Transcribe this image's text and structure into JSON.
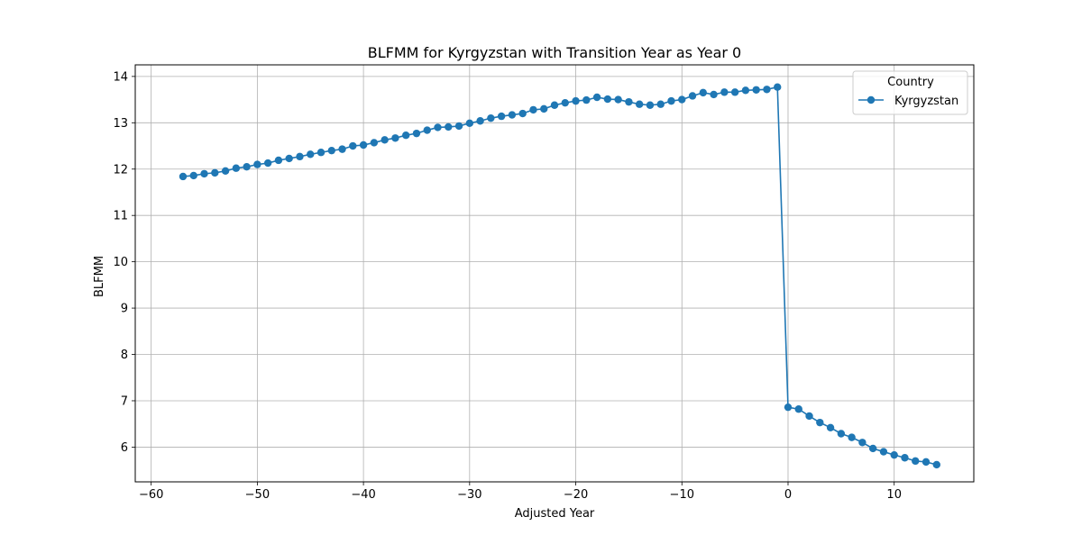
{
  "chart_data": {
    "type": "line",
    "title": "BLFMM for Kyrgyzstan with Transition Year as Year 0",
    "xlabel": "Adjusted Year",
    "ylabel": "BLFMM",
    "xlim": [
      -61.5,
      17.5
    ],
    "ylim": [
      5.25,
      14.25
    ],
    "xticks": [
      -60,
      -50,
      -40,
      -30,
      -20,
      -10,
      0,
      10
    ],
    "xtick_labels": [
      "−60",
      "−50",
      "−40",
      "−30",
      "−20",
      "−10",
      "0",
      "10"
    ],
    "yticks": [
      6,
      7,
      8,
      9,
      10,
      11,
      12,
      13,
      14
    ],
    "ytick_labels": [
      "6",
      "7",
      "8",
      "9",
      "10",
      "11",
      "12",
      "13",
      "14"
    ],
    "grid": true,
    "legend": {
      "title": "Country",
      "placement": "top-right"
    },
    "series": [
      {
        "name": "Kyrgyzstan",
        "color": "#1f77b4",
        "marker": "circle",
        "x": [
          -57,
          -56,
          -55,
          -54,
          -53,
          -52,
          -51,
          -50,
          -49,
          -48,
          -47,
          -46,
          -45,
          -44,
          -43,
          -42,
          -41,
          -40,
          -39,
          -38,
          -37,
          -36,
          -35,
          -34,
          -33,
          -32,
          -31,
          -30,
          -29,
          -28,
          -27,
          -26,
          -25,
          -24,
          -23,
          -22,
          -21,
          -20,
          -19,
          -18,
          -17,
          -16,
          -15,
          -14,
          -13,
          -12,
          -11,
          -10,
          -9,
          -8,
          -7,
          -6,
          -5,
          -4,
          -3,
          -2,
          -1,
          0,
          1,
          2,
          3,
          4,
          5,
          6,
          7,
          8,
          9,
          10,
          11,
          12,
          13,
          14
        ],
        "y": [
          11.84,
          11.86,
          11.9,
          11.92,
          11.96,
          12.02,
          12.05,
          12.1,
          12.13,
          12.19,
          12.23,
          12.27,
          12.32,
          12.36,
          12.4,
          12.43,
          12.5,
          12.52,
          12.57,
          12.63,
          12.67,
          12.73,
          12.77,
          12.84,
          12.9,
          12.91,
          12.93,
          12.99,
          13.04,
          13.1,
          13.14,
          13.17,
          13.2,
          13.28,
          13.3,
          13.38,
          13.43,
          13.47,
          13.49,
          13.55,
          13.51,
          13.5,
          13.45,
          13.4,
          13.38,
          13.4,
          13.47,
          13.5,
          13.58,
          13.65,
          13.61,
          13.66,
          13.66,
          13.7,
          13.71,
          13.72,
          13.77,
          6.86,
          6.82,
          6.67,
          6.53,
          6.42,
          6.29,
          6.21,
          6.1,
          5.97,
          5.9,
          5.83,
          5.77,
          5.7,
          5.68,
          5.62
        ]
      }
    ]
  }
}
